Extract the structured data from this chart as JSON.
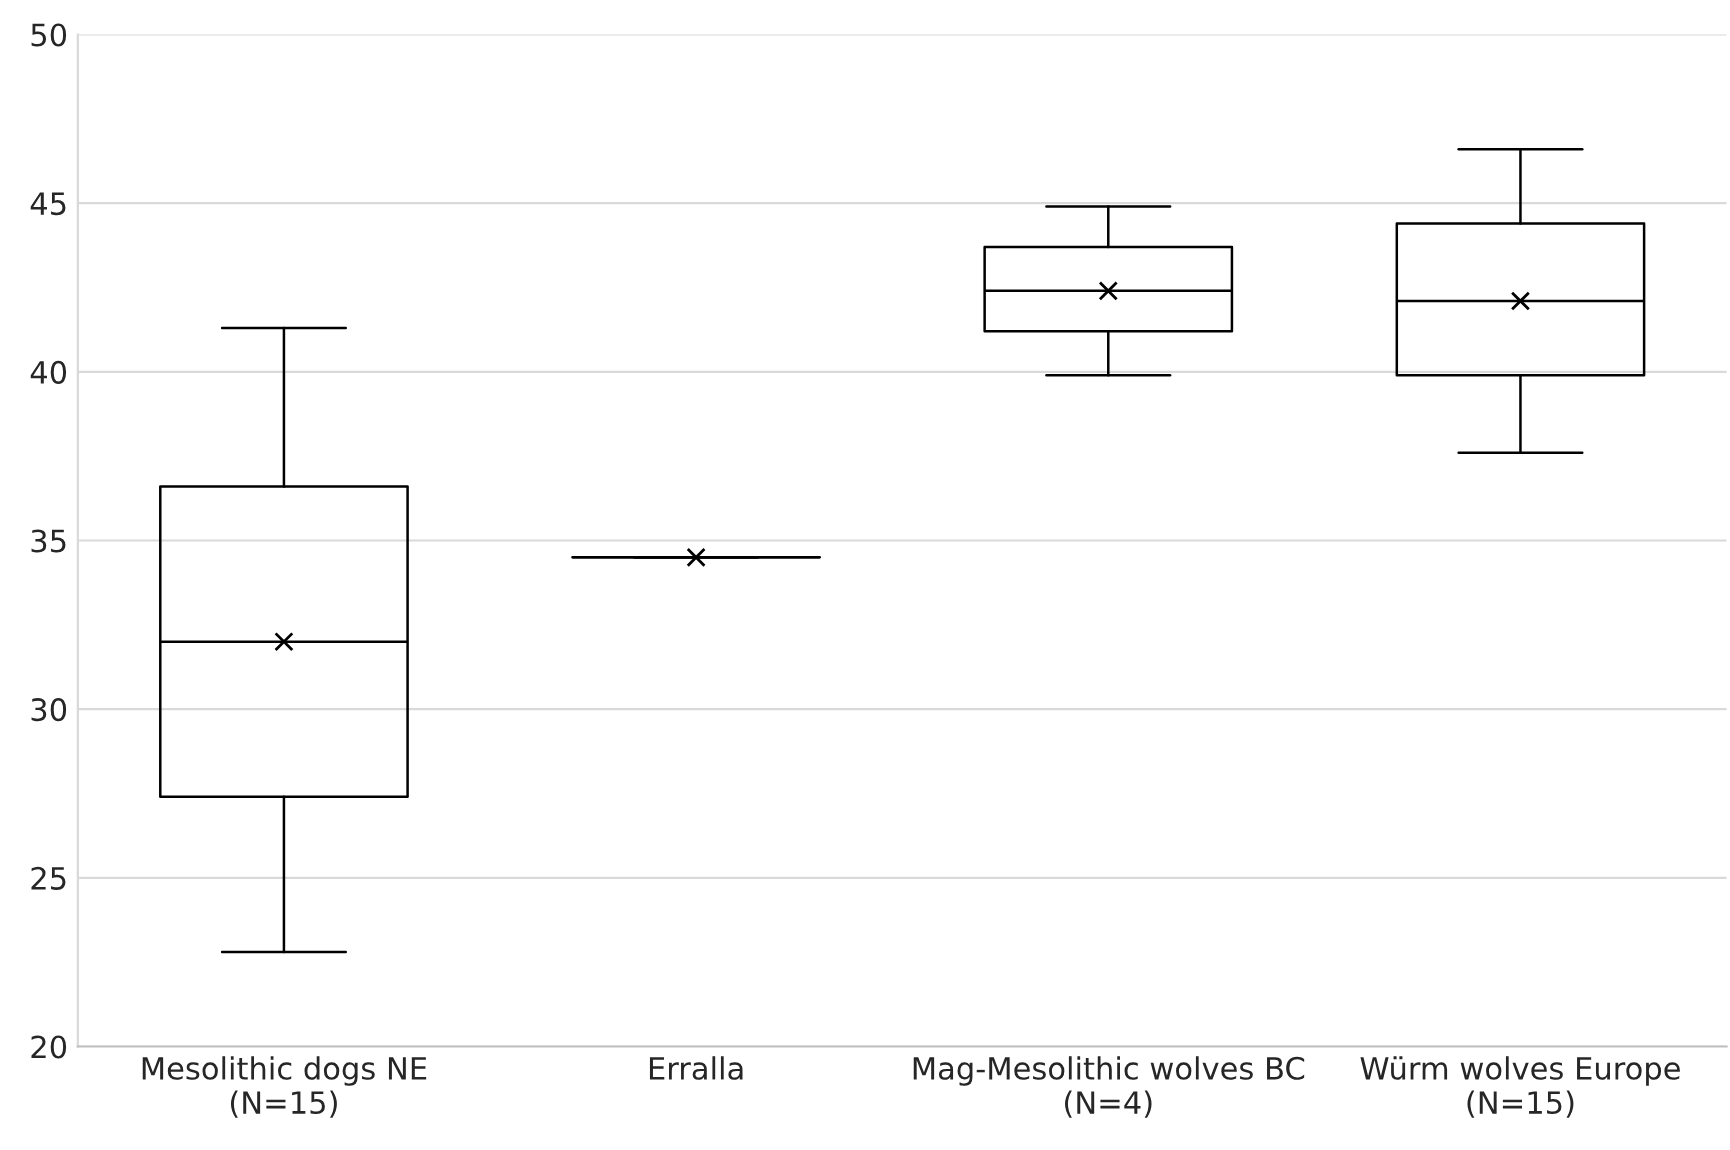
{
  "chart_data": {
    "type": "box",
    "categories": [
      "Mesolithic dogs NE\n(N=15)",
      "Erralla",
      "Mag-Mesolithic wolves BC\n(N=4)",
      "Würm wolves Europe\n(N=15)"
    ],
    "boxes": [
      {
        "low": 22.8,
        "q1": 27.4,
        "median": 32.0,
        "q3": 36.6,
        "high": 41.3,
        "mean": 32.0
      },
      {
        "low": 34.5,
        "q1": 34.5,
        "median": 34.5,
        "q3": 34.5,
        "high": 34.5,
        "mean": 34.5
      },
      {
        "low": 39.9,
        "q1": 41.2,
        "median": 42.4,
        "q3": 43.7,
        "high": 44.9,
        "mean": 42.4
      },
      {
        "low": 37.6,
        "q1": 39.9,
        "median": 42.1,
        "q3": 44.4,
        "high": 46.6,
        "mean": 42.1
      }
    ],
    "color": "#000000",
    "ylim": [
      20,
      50
    ],
    "yticks": [
      20,
      25,
      30,
      35,
      40,
      45,
      50
    ],
    "grid": "y"
  }
}
